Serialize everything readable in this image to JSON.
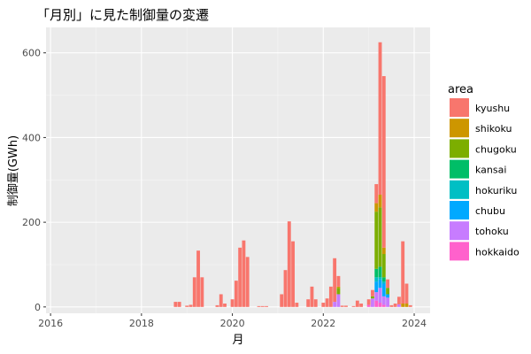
{
  "chart_data": {
    "type": "bar",
    "stacked": true,
    "title": "「月別」に見た制御量の変遷",
    "xlabel": "月",
    "ylabel": "制御量(GWh)",
    "xlim": [
      2015.9,
      2024.35
    ],
    "ylim": [
      -15,
      660
    ],
    "x_ticks": [
      2016,
      2018,
      2020,
      2022,
      2024
    ],
    "y_ticks": [
      0,
      200,
      400,
      600
    ],
    "grid": true,
    "legend_position": "right",
    "legend_title": "area",
    "series_colors": {
      "kyushu": "#F8766D",
      "shikoku": "#CD9600",
      "chugoku": "#7CAE00",
      "kansai": "#00BE67",
      "hokuriku": "#00BFC4",
      "chubu": "#00A9FF",
      "tohoku": "#C77CFF",
      "hokkaido": "#FF61CC"
    },
    "legend_order": [
      "kyushu",
      "shikoku",
      "chugoku",
      "kansai",
      "hokuriku",
      "chubu",
      "tohoku",
      "hokkaido"
    ],
    "stack_order": [
      "hokkaido",
      "tohoku",
      "chubu",
      "hokuriku",
      "kansai",
      "chugoku",
      "shikoku",
      "kyushu"
    ],
    "months": [
      {
        "date": "2018-10",
        "values": {
          "kyushu": 12
        }
      },
      {
        "date": "2018-11",
        "values": {
          "kyushu": 12
        }
      },
      {
        "date": "2019-01",
        "values": {
          "kyushu": 3
        }
      },
      {
        "date": "2019-02",
        "values": {
          "kyushu": 5
        }
      },
      {
        "date": "2019-03",
        "values": {
          "kyushu": 70
        }
      },
      {
        "date": "2019-04",
        "values": {
          "kyushu": 133
        }
      },
      {
        "date": "2019-05",
        "values": {
          "kyushu": 70
        }
      },
      {
        "date": "2019-09",
        "values": {
          "kyushu": 4
        }
      },
      {
        "date": "2019-10",
        "values": {
          "kyushu": 30
        }
      },
      {
        "date": "2019-11",
        "values": {
          "kyushu": 8
        }
      },
      {
        "date": "2020-01",
        "values": {
          "kyushu": 18
        }
      },
      {
        "date": "2020-02",
        "values": {
          "kyushu": 62
        }
      },
      {
        "date": "2020-03",
        "values": {
          "kyushu": 140
        }
      },
      {
        "date": "2020-04",
        "values": {
          "kyushu": 157
        }
      },
      {
        "date": "2020-05",
        "values": {
          "kyushu": 118
        }
      },
      {
        "date": "2020-08",
        "values": {
          "kyushu": 2
        }
      },
      {
        "date": "2020-09",
        "values": {
          "kyushu": 2
        }
      },
      {
        "date": "2020-10",
        "values": {
          "kyushu": 2
        }
      },
      {
        "date": "2021-02",
        "values": {
          "kyushu": 30
        }
      },
      {
        "date": "2021-03",
        "values": {
          "kyushu": 87
        }
      },
      {
        "date": "2021-04",
        "values": {
          "kyushu": 202
        }
      },
      {
        "date": "2021-05",
        "values": {
          "kyushu": 155
        }
      },
      {
        "date": "2021-06",
        "values": {
          "kyushu": 10
        }
      },
      {
        "date": "2021-09",
        "values": {
          "kyushu": 18
        }
      },
      {
        "date": "2021-10",
        "values": {
          "kyushu": 48
        }
      },
      {
        "date": "2021-11",
        "values": {
          "kyushu": 18
        }
      },
      {
        "date": "2022-01",
        "values": {
          "kyushu": 10
        }
      },
      {
        "date": "2022-02",
        "values": {
          "kyushu": 20
        }
      },
      {
        "date": "2022-03",
        "values": {
          "kyushu": 48
        }
      },
      {
        "date": "2022-04",
        "values": {
          "kyushu": 103,
          "tohoku": 12
        }
      },
      {
        "date": "2022-05",
        "values": {
          "kyushu": 25,
          "shikoku": 3,
          "chugoku": 15,
          "tohoku": 30
        }
      },
      {
        "date": "2022-06",
        "values": {
          "kyushu": 3
        }
      },
      {
        "date": "2022-07",
        "values": {
          "kyushu": 3
        }
      },
      {
        "date": "2022-09",
        "values": {
          "kyushu": 2
        }
      },
      {
        "date": "2022-10",
        "values": {
          "kyushu": 15
        }
      },
      {
        "date": "2022-11",
        "values": {
          "kyushu": 8
        }
      },
      {
        "date": "2023-01",
        "values": {
          "kyushu": 13,
          "hokkaido": 5
        }
      },
      {
        "date": "2023-02",
        "values": {
          "kyushu": 15,
          "chugoku": 5,
          "tohoku": 20
        }
      },
      {
        "date": "2023-03",
        "values": {
          "kyushu": 45,
          "shikoku": 20,
          "chugoku": 135,
          "kansai": 20,
          "hokuriku": 10,
          "chubu": 25,
          "tohoku": 20,
          "hokkaido": 15
        }
      },
      {
        "date": "2023-04",
        "values": {
          "kyushu": 360,
          "shikoku": 30,
          "chugoku": 140,
          "kansai": 25,
          "hokuriku": 5,
          "chubu": 20,
          "tohoku": 35,
          "hokkaido": 10
        }
      },
      {
        "date": "2023-05",
        "values": {
          "kyushu": 405,
          "shikoku": 15,
          "chugoku": 55,
          "kansai": 10,
          "hokuriku": 5,
          "chubu": 30,
          "tohoku": 20,
          "hokkaido": 5
        }
      },
      {
        "date": "2023-06",
        "values": {
          "kyushu": 20,
          "chugoku": 15,
          "chubu": 8,
          "tohoku": 22
        }
      },
      {
        "date": "2023-07",
        "values": {
          "kyushu": 4
        }
      },
      {
        "date": "2023-08",
        "values": {
          "kyushu": 8
        }
      },
      {
        "date": "2023-09",
        "values": {
          "kyushu": 18,
          "tohoku": 6
        }
      },
      {
        "date": "2023-10",
        "values": {
          "kyushu": 147,
          "shikoku": 8
        }
      },
      {
        "date": "2023-11",
        "values": {
          "kyushu": 47,
          "shikoku": 8
        }
      },
      {
        "date": "2023-12",
        "values": {
          "kyushu": 4
        }
      }
    ]
  }
}
